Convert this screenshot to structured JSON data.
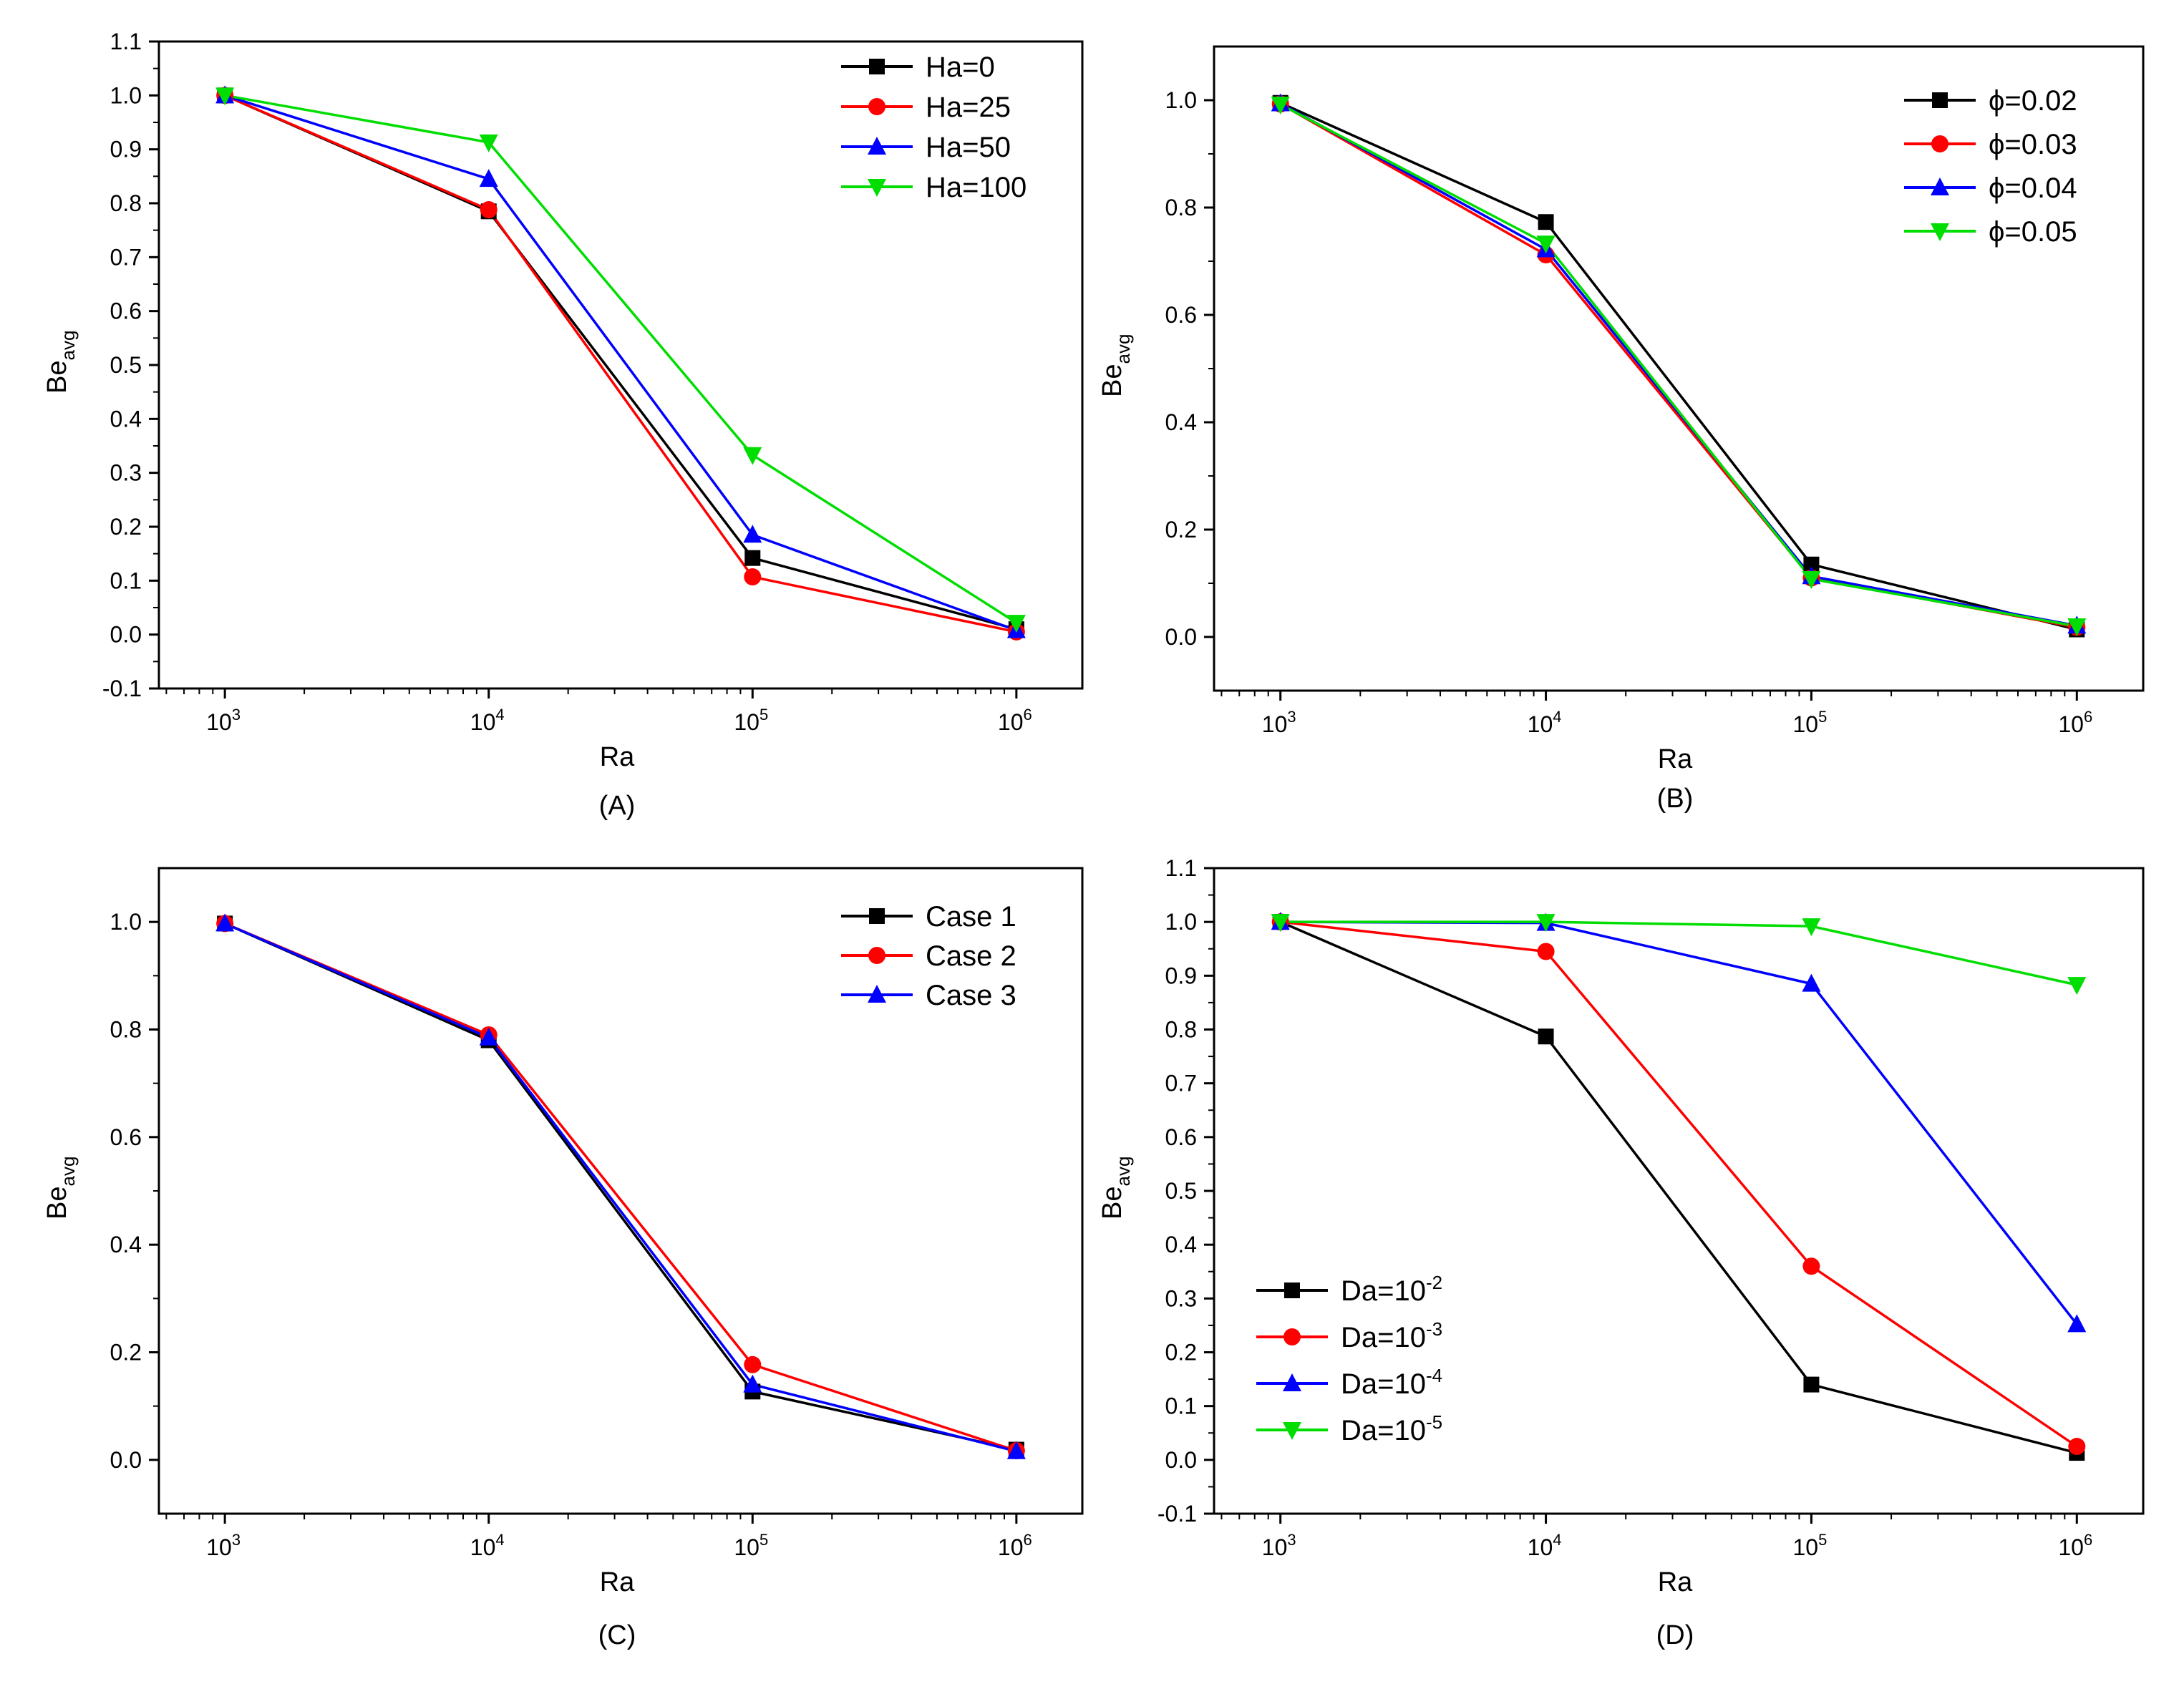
{
  "chart_data": [
    {
      "panel": "A",
      "caption": "(A)",
      "type": "line",
      "xscale": "log",
      "xlabel": "Ra",
      "ylabel": "Be",
      "ylabel_sub": "avg",
      "x": [
        1000,
        10000,
        100000,
        1000000
      ],
      "x_tick_labels": [
        {
          "base": "10",
          "exp": "3"
        },
        {
          "base": "10",
          "exp": "4"
        },
        {
          "base": "10",
          "exp": "5"
        },
        {
          "base": "10",
          "exp": "6"
        }
      ],
      "ylim": [
        -0.1,
        1.1
      ],
      "y_ticks": [
        "-0.1",
        "0.0",
        "0.1",
        "0.2",
        "0.3",
        "0.4",
        "0.5",
        "0.6",
        "0.7",
        "0.8",
        "0.9",
        "1.0",
        "1.1"
      ],
      "legend_position": "top-right",
      "series": [
        {
          "name": "Ha=0",
          "color": "#000000",
          "marker": "square",
          "values": [
            1.0,
            0.785,
            0.142,
            0.01
          ]
        },
        {
          "name": "Ha=25",
          "color": "#ff0000",
          "marker": "circle",
          "values": [
            1.0,
            0.788,
            0.107,
            0.005
          ]
        },
        {
          "name": "Ha=50",
          "color": "#0000ff",
          "marker": "triangle-up",
          "values": [
            1.0,
            0.845,
            0.185,
            0.008
          ]
        },
        {
          "name": "Ha=100",
          "color": "#00dd00",
          "marker": "triangle-down",
          "values": [
            1.0,
            0.913,
            0.333,
            0.022
          ]
        }
      ]
    },
    {
      "panel": "B",
      "caption": "(B)",
      "type": "line",
      "xscale": "log",
      "xlabel": "Ra",
      "ylabel": "Be",
      "ylabel_sub": "avg",
      "x": [
        1000,
        10000,
        100000,
        1000000
      ],
      "x_tick_labels": [
        {
          "base": "10",
          "exp": "3"
        },
        {
          "base": "10",
          "exp": "4"
        },
        {
          "base": "10",
          "exp": "5"
        },
        {
          "base": "10",
          "exp": "6"
        }
      ],
      "ylim": [
        -0.1,
        1.1
      ],
      "y_ticks": [
        "0.0",
        "0.2",
        "0.4",
        "0.6",
        "0.8",
        "1.0"
      ],
      "legend_position": "top-right",
      "series": [
        {
          "name": "ϕ=0.02",
          "color": "#000000",
          "marker": "square",
          "values": [
            0.995,
            0.773,
            0.135,
            0.014
          ]
        },
        {
          "name": "ϕ=0.03",
          "color": "#ff0000",
          "marker": "circle",
          "values": [
            0.993,
            0.712,
            0.11,
            0.018
          ]
        },
        {
          "name": "ϕ=0.04",
          "color": "#0000ff",
          "marker": "triangle-up",
          "values": [
            0.994,
            0.722,
            0.113,
            0.021
          ]
        },
        {
          "name": "ϕ=0.05",
          "color": "#00dd00",
          "marker": "triangle-down",
          "values": [
            0.992,
            0.733,
            0.108,
            0.02
          ]
        }
      ]
    },
    {
      "panel": "C",
      "caption": "(C)",
      "type": "line",
      "xscale": "log",
      "xlabel": "Ra",
      "ylabel": "Be",
      "ylabel_sub": "avg",
      "x": [
        1000,
        10000,
        100000,
        1000000
      ],
      "x_tick_labels": [
        {
          "base": "10",
          "exp": "3"
        },
        {
          "base": "10",
          "exp": "4"
        },
        {
          "base": "10",
          "exp": "5"
        },
        {
          "base": "10",
          "exp": "6"
        }
      ],
      "ylim": [
        -0.1,
        1.1
      ],
      "y_ticks": [
        "0.0",
        "0.2",
        "0.4",
        "0.6",
        "0.8",
        "1.0"
      ],
      "legend_position": "top-right",
      "series": [
        {
          "name": "Case 1",
          "color": "#000000",
          "marker": "square",
          "values": [
            0.997,
            0.78,
            0.127,
            0.019
          ]
        },
        {
          "name": "Case 2",
          "color": "#ff0000",
          "marker": "circle",
          "values": [
            0.997,
            0.79,
            0.177,
            0.017
          ]
        },
        {
          "name": "Case 3",
          "color": "#0000ff",
          "marker": "triangle-up",
          "values": [
            0.997,
            0.785,
            0.14,
            0.016
          ]
        }
      ]
    },
    {
      "panel": "D",
      "caption": "(D)",
      "type": "line",
      "xscale": "log",
      "xlabel": "Ra",
      "ylabel": "Be",
      "ylabel_sub": "avg",
      "x": [
        1000,
        10000,
        100000,
        1000000
      ],
      "x_tick_labels": [
        {
          "base": "10",
          "exp": "3"
        },
        {
          "base": "10",
          "exp": "4"
        },
        {
          "base": "10",
          "exp": "5"
        },
        {
          "base": "10",
          "exp": "6"
        }
      ],
      "ylim": [
        -0.1,
        1.1
      ],
      "y_ticks": [
        "-0.1",
        "0.0",
        "0.1",
        "0.2",
        "0.3",
        "0.4",
        "0.5",
        "0.6",
        "0.7",
        "0.8",
        "0.9",
        "1.0",
        "1.1"
      ],
      "legend_position": "bottom-left",
      "series": [
        {
          "name": "Da=10",
          "name_exp": "-2",
          "color": "#000000",
          "marker": "square",
          "values": [
            1.0,
            0.787,
            0.14,
            0.013
          ]
        },
        {
          "name": "Da=10",
          "name_exp": "-3",
          "color": "#ff0000",
          "marker": "circle",
          "values": [
            1.0,
            0.945,
            0.36,
            0.025
          ]
        },
        {
          "name": "Da=10",
          "name_exp": "-4",
          "color": "#0000ff",
          "marker": "triangle-up",
          "values": [
            1.0,
            0.998,
            0.885,
            0.252
          ]
        },
        {
          "name": "Da=10",
          "name_exp": "-5",
          "color": "#00dd00",
          "marker": "triangle-down",
          "values": [
            1.0,
            1.0,
            0.992,
            0.883
          ]
        }
      ]
    }
  ]
}
